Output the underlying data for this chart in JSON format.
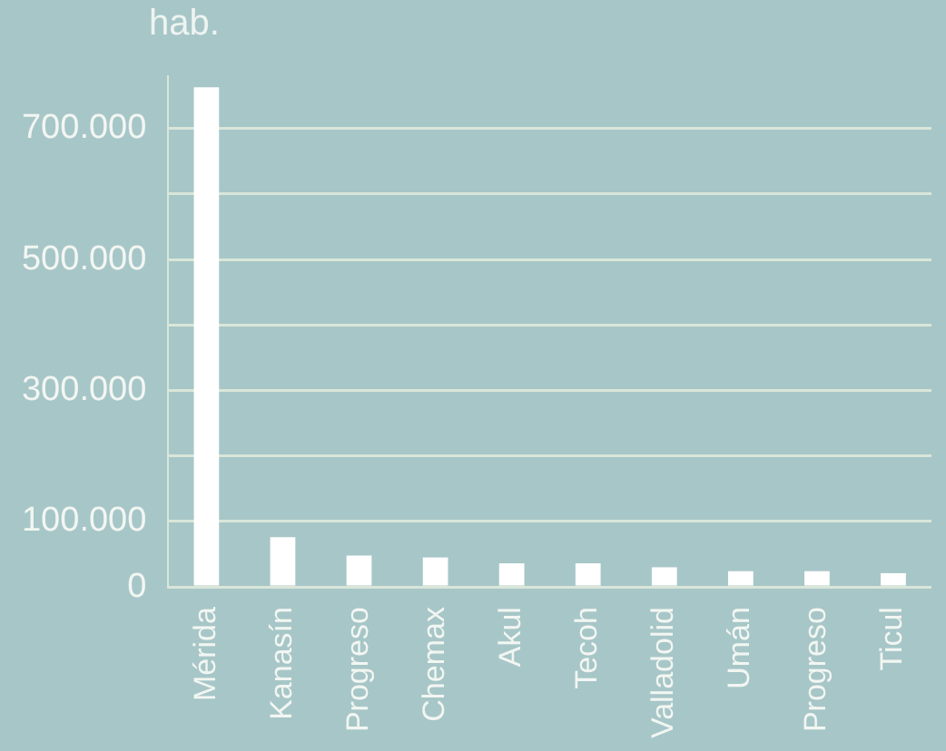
{
  "chart_data": {
    "type": "bar",
    "ylabel": "hab.",
    "categories": [
      "Mérida",
      "Kanasín",
      "Progreso",
      "Chemax",
      "Akul",
      "Tecoh",
      "Valladolid",
      "Umán",
      "Progreso",
      "Ticul"
    ],
    "values": [
      763000,
      76000,
      48000,
      45000,
      36000,
      36000,
      30000,
      24000,
      24000,
      21000
    ],
    "color": "#ffffff",
    "ylim": [
      0,
      780000
    ],
    "yticks": [
      0,
      {
        "value": 100000,
        "label": "100.000"
      },
      {
        "value": 200000,
        "label": null
      },
      {
        "value": 300000,
        "label": "300.000"
      },
      {
        "value": 400000,
        "label": null
      },
      {
        "value": 500000,
        "label": "500.000"
      },
      {
        "value": 600000,
        "label": null
      },
      {
        "value": 700000,
        "label": "700.000"
      }
    ],
    "grid": "y"
  }
}
